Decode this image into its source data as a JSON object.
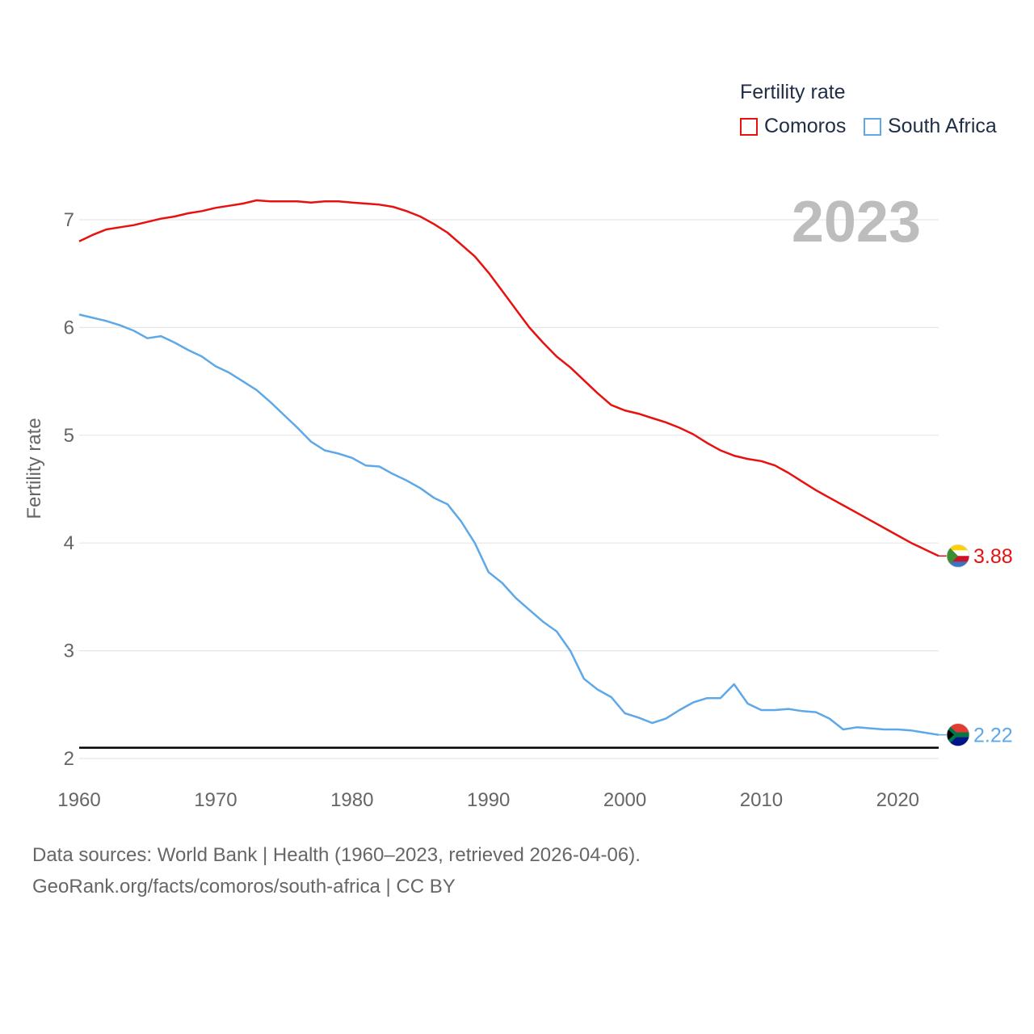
{
  "legend": {
    "title": "Fertility rate",
    "items": [
      {
        "label": "Comoros",
        "color": "#e8110f"
      },
      {
        "label": "South Africa",
        "color": "#5ea8e8"
      }
    ]
  },
  "year_label": "2023",
  "footer": {
    "line1": "Data sources: World Bank | Health (1960–2023, retrieved 2026-04-06).",
    "line2": "GeoRank.org/facts/comoros/south-africa | CC BY"
  },
  "chart_data": {
    "type": "line",
    "title": "Fertility rate",
    "xlabel": "",
    "ylabel": "Fertility rate",
    "xlim": [
      1960,
      2023
    ],
    "ylim": [
      2,
      7
    ],
    "xticks": [
      "1960",
      "1970",
      "1980",
      "1990",
      "2000",
      "2010",
      "2020"
    ],
    "yticks": [
      "2",
      "3",
      "4",
      "5",
      "6",
      "7"
    ],
    "reference_line": 2.1,
    "x_start": 1960,
    "series": [
      {
        "name": "Comoros",
        "color": "#e8110f",
        "end_label": "3.88",
        "values": [
          6.8,
          6.86,
          6.91,
          6.93,
          6.95,
          6.98,
          7.01,
          7.03,
          7.06,
          7.08,
          7.11,
          7.13,
          7.15,
          7.18,
          7.17,
          7.17,
          7.17,
          7.16,
          7.17,
          7.17,
          7.16,
          7.15,
          7.14,
          7.12,
          7.08,
          7.03,
          6.96,
          6.88,
          6.77,
          6.66,
          6.51,
          6.34,
          6.17,
          6.0,
          5.86,
          5.73,
          5.63,
          5.51,
          5.39,
          5.28,
          5.23,
          5.2,
          5.16,
          5.12,
          5.07,
          5.01,
          4.93,
          4.86,
          4.81,
          4.78,
          4.76,
          4.72,
          4.65,
          4.57,
          4.49,
          4.42,
          4.35,
          4.28,
          4.21,
          4.14,
          4.07,
          4.0,
          3.94,
          3.88
        ]
      },
      {
        "name": "South Africa",
        "color": "#5ea8e8",
        "end_label": "2.22",
        "values": [
          6.12,
          6.09,
          6.06,
          6.02,
          5.97,
          5.9,
          5.92,
          5.86,
          5.79,
          5.73,
          5.64,
          5.58,
          5.5,
          5.42,
          5.31,
          5.19,
          5.07,
          4.94,
          4.86,
          4.83,
          4.79,
          4.72,
          4.71,
          4.64,
          4.58,
          4.51,
          4.42,
          4.36,
          4.2,
          4.0,
          3.73,
          3.63,
          3.49,
          3.38,
          3.27,
          3.18,
          3.0,
          2.74,
          2.64,
          2.57,
          2.42,
          2.38,
          2.33,
          2.37,
          2.45,
          2.52,
          2.56,
          2.56,
          2.69,
          2.51,
          2.45,
          2.45,
          2.46,
          2.44,
          2.43,
          2.37,
          2.27,
          2.29,
          2.28,
          2.27,
          2.27,
          2.26,
          2.24,
          2.22
        ]
      }
    ]
  }
}
